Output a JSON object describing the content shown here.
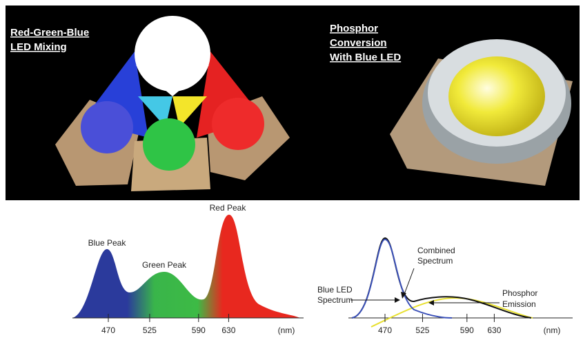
{
  "rgb_panel": {
    "title_lines": [
      "Red-Green-Blue",
      "LED Mixing"
    ]
  },
  "phosphor_panel": {
    "title_lines": [
      "Phosphor",
      "Conversion",
      "With Blue LED"
    ]
  },
  "rgb_spectrum": {
    "blue_label": "Blue Peak",
    "green_label": "Green Peak",
    "red_label": "Red Peak",
    "ticks": [
      470,
      525,
      590,
      630
    ],
    "unit": "(nm)"
  },
  "phosphor_spectrum": {
    "combined_label": [
      "Combined",
      "Spectrum"
    ],
    "blue_label": [
      "Blue LED",
      "Spectrum"
    ],
    "phosphor_label": [
      "Phosphor",
      "Emission"
    ],
    "ticks": [
      470,
      525,
      590,
      630
    ],
    "unit": "(nm)"
  }
}
